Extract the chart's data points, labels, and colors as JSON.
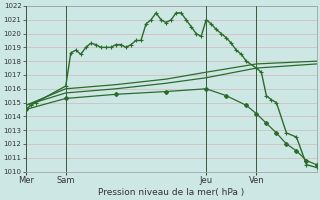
{
  "title": "Pression niveau de la mer( hPa )",
  "bg_color": "#cde8e4",
  "grid_color": "#b8d8d4",
  "line_color": "#2d6b2d",
  "ylim": [
    1010,
    1022
  ],
  "yticks": [
    1010,
    1011,
    1012,
    1013,
    1014,
    1015,
    1016,
    1017,
    1018,
    1019,
    1020,
    1021,
    1022
  ],
  "xtick_labels": [
    "Mer",
    "Sam",
    "Jeu",
    "Ven"
  ],
  "xtick_positions": [
    0,
    8,
    36,
    46
  ],
  "vlines": [
    0,
    8,
    36,
    46
  ],
  "xlim": [
    0,
    58
  ],
  "series1_x": [
    0,
    1,
    2,
    8,
    9,
    10,
    11,
    12,
    13,
    14,
    15,
    16,
    17,
    18,
    19,
    20,
    21,
    22,
    23,
    24,
    25,
    26,
    27,
    28,
    29,
    30,
    31,
    32,
    33,
    34,
    35,
    36,
    37,
    38,
    39,
    40,
    41,
    42,
    43,
    44,
    46,
    47,
    48,
    49,
    50,
    52,
    54,
    56,
    58
  ],
  "series1_y": [
    1014.5,
    1014.8,
    1015.0,
    1016.2,
    1018.6,
    1018.8,
    1018.5,
    1019.0,
    1019.3,
    1019.2,
    1019.0,
    1019.0,
    1019.0,
    1019.2,
    1019.2,
    1019.0,
    1019.2,
    1019.5,
    1019.5,
    1020.7,
    1021.0,
    1021.5,
    1021.0,
    1020.8,
    1021.0,
    1021.5,
    1021.5,
    1021.0,
    1020.5,
    1020.0,
    1019.8,
    1021.0,
    1020.7,
    1020.3,
    1020.0,
    1019.7,
    1019.3,
    1018.8,
    1018.5,
    1018.0,
    1017.5,
    1017.2,
    1015.5,
    1015.2,
    1015.0,
    1012.8,
    1012.5,
    1010.5,
    1010.3
  ],
  "series2_x": [
    0,
    8,
    18,
    28,
    36,
    46,
    58
  ],
  "series2_y": [
    1014.8,
    1016.0,
    1016.3,
    1016.7,
    1017.2,
    1017.8,
    1018.0
  ],
  "series3_x": [
    0,
    8,
    18,
    28,
    36,
    46,
    58
  ],
  "series3_y": [
    1014.8,
    1015.7,
    1016.0,
    1016.4,
    1016.8,
    1017.5,
    1017.8
  ],
  "series4_x": [
    0,
    8,
    18,
    28,
    36,
    40,
    44,
    46,
    48,
    50,
    52,
    54,
    56,
    58
  ],
  "series4_y": [
    1014.5,
    1015.3,
    1015.6,
    1015.8,
    1016.0,
    1015.5,
    1014.8,
    1014.2,
    1013.5,
    1012.8,
    1012.0,
    1011.5,
    1010.8,
    1010.5
  ]
}
